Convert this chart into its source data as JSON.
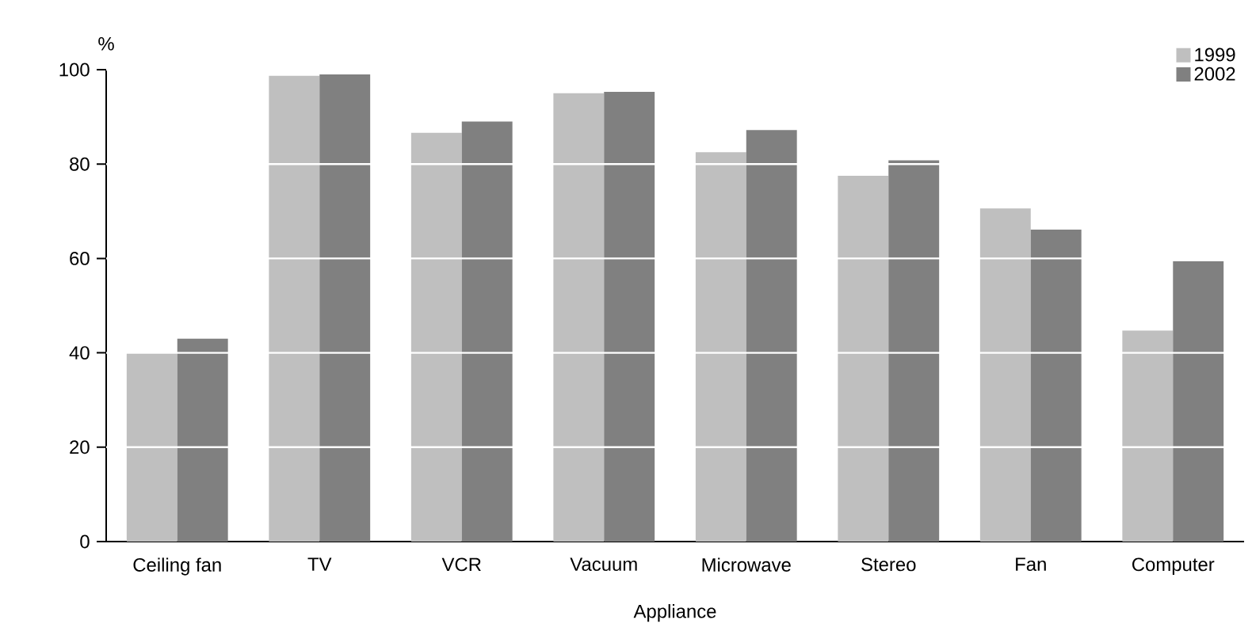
{
  "chart_data": {
    "type": "bar",
    "xlabel": "Appliance",
    "ylabel": "%",
    "categories": [
      "Ceiling fan",
      "TV",
      "VCR",
      "Vacuum",
      "Microwave",
      "Stereo",
      "Fan",
      "Computer"
    ],
    "series": [
      {
        "name": "1999",
        "color": "#bfbfbf",
        "values": [
          40,
          98.7,
          86.6,
          95,
          82.5,
          77.5,
          70.6,
          44.7
        ]
      },
      {
        "name": "2002",
        "color": "#808080",
        "values": [
          43,
          99,
          89,
          95.3,
          87.2,
          80.8,
          66.1,
          59.4
        ]
      }
    ],
    "ylim": [
      0,
      100
    ],
    "yticks": [
      0,
      20,
      40,
      60,
      80,
      100
    ],
    "grid": "y",
    "legend": "top right"
  }
}
